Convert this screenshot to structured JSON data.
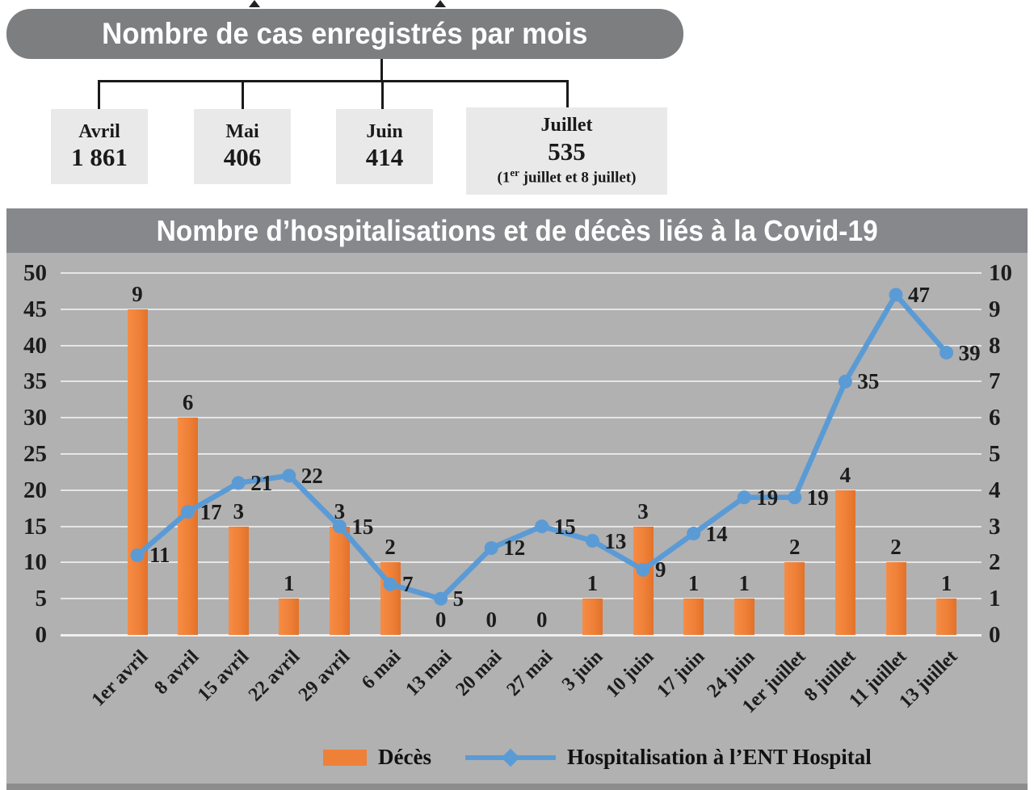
{
  "top": {
    "title": "Nombre de cas enregistrés par mois",
    "months": [
      {
        "label": "Avril",
        "value": "1 861"
      },
      {
        "label": "Mai",
        "value": "406"
      },
      {
        "label": "Juin",
        "value": "414"
      },
      {
        "label": "Juillet",
        "value": "535",
        "note_pre": "(1",
        "note_sup": "er",
        "note_post": " juillet et 8 juillet)"
      }
    ]
  },
  "chart": {
    "title": "Nombre d’hospitalisations et de décès liés à la Covid-19",
    "legend": {
      "deces": "Décès",
      "hosp": "Hospitalisation à l’ENT Hospital"
    }
  },
  "colors": {
    "pill_gray": "#7D7E80",
    "band_gray": "#87888C",
    "chart_background": "#B1B1B1",
    "box_background": "#E9E9E9",
    "bar_orange": "#EF8038",
    "line_blue": "#5B9BD5"
  },
  "chart_data": {
    "type": "bar+line",
    "title": "Nombre d’hospitalisations et de décès liés à la Covid-19",
    "categories": [
      "1er avril",
      "8 avril",
      "15 avril",
      "22 avril",
      "29 avril",
      "6 mai",
      "13 mai",
      "20 mai",
      "27 mai",
      "3 juin",
      "10 juin",
      "17 juin",
      "24 juin",
      "1er juillet",
      "8 juillet",
      "11 juillet",
      "13 juillet"
    ],
    "series": [
      {
        "name": "Décès",
        "type": "bar",
        "axis": "right",
        "color": "#EF8038",
        "values": [
          9,
          6,
          3,
          1,
          3,
          2,
          0,
          0,
          0,
          1,
          3,
          1,
          1,
          2,
          4,
          2,
          1
        ]
      },
      {
        "name": "Hospitalisation à l’ENT Hospital",
        "type": "line",
        "axis": "left",
        "color": "#5B9BD5",
        "values": [
          11,
          17,
          21,
          22,
          15,
          7,
          5,
          12,
          15,
          13,
          9,
          14,
          19,
          19,
          35,
          47,
          39
        ]
      }
    ],
    "left_axis": {
      "min": 0,
      "max": 50,
      "step": 5
    },
    "right_axis": {
      "min": 0,
      "max": 10,
      "step": 1
    },
    "grid": true,
    "data_labels": true,
    "legend_position": "bottom"
  }
}
